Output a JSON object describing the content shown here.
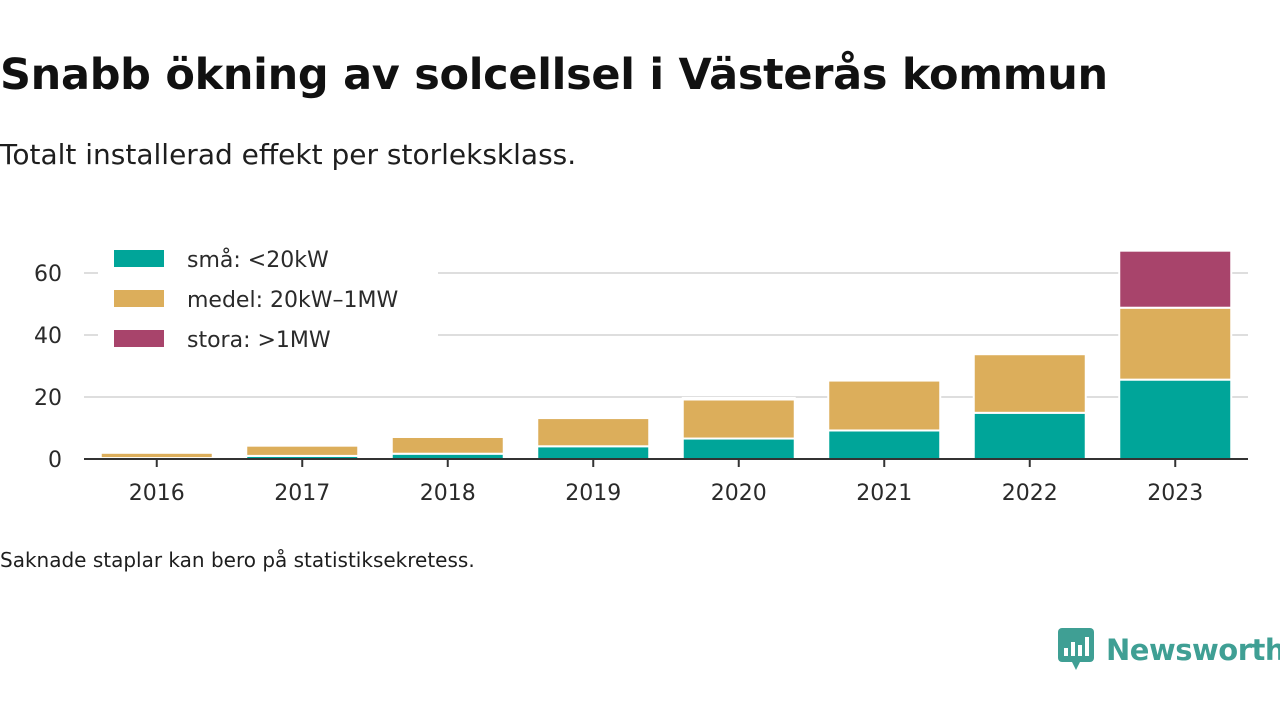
{
  "title": "Snabb ökning av solcellsel i Västerås kommun",
  "subtitle": "Totalt installerad effekt per storleksklass.",
  "footnote": "Saknade staplar kan bero på statistiksekretess.",
  "brand": "Newsworthy",
  "chart_data": {
    "type": "bar",
    "stacked": true,
    "title": "",
    "xlabel": "",
    "ylabel": "",
    "categories": [
      "2016",
      "2017",
      "2018",
      "2019",
      "2020",
      "2021",
      "2022",
      "2023"
    ],
    "ylim": [
      0,
      70
    ],
    "yticks": [
      0,
      20,
      40,
      60
    ],
    "grid": true,
    "legend_position": "top-left",
    "series": [
      {
        "name": "små: <20kW",
        "color": "#00a599",
        "values": [
          0.3,
          1.0,
          1.7,
          4.1,
          6.6,
          9.2,
          14.9,
          25.6
        ]
      },
      {
        "name": "medel: 20kW–1MW",
        "color": "#dcae5b",
        "values": [
          1.7,
          3.3,
          5.4,
          9.1,
          12.6,
          16.1,
          18.9,
          23.2
        ]
      },
      {
        "name": "stora: >1MW",
        "color": "#a8446b",
        "values": [
          0,
          0,
          0,
          0,
          0.5,
          0,
          0,
          18.4
        ]
      }
    ]
  }
}
